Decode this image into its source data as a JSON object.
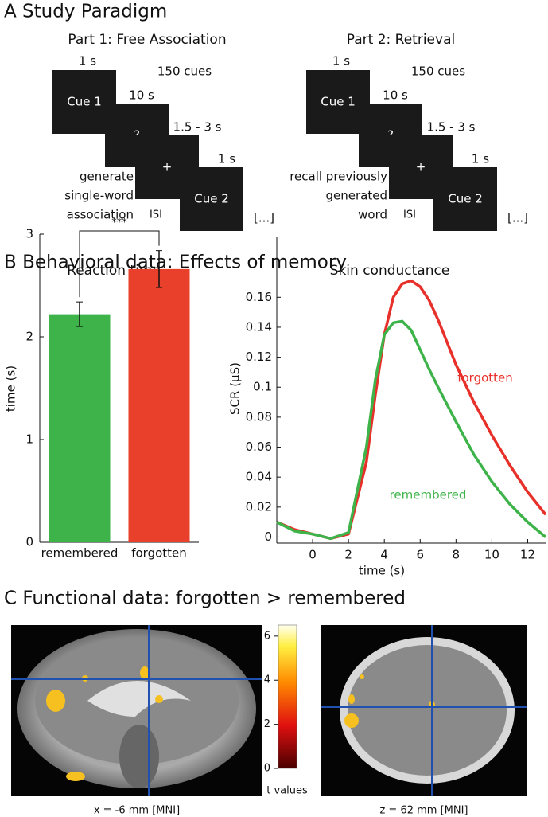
{
  "study_paradigm": {
    "title": "A Study Paradigm",
    "parts": [
      {
        "title": "Part 1: Free Association",
        "cue_count": "150 cues",
        "screens": [
          "Cue 1",
          "?",
          "+",
          "Cue 2"
        ],
        "durations": [
          "1 s",
          "10 s",
          "1.5 - 3 s",
          "1 s"
        ],
        "instruction": [
          "generate",
          "single-word",
          "association"
        ],
        "isi": "ISI",
        "continuation": "[...]"
      },
      {
        "title": "Part 2: Retrieval",
        "cue_count": "150 cues",
        "screens": [
          "Cue 1",
          "?",
          "+",
          "Cue 2"
        ],
        "durations": [
          "1 s",
          "10 s",
          "1.5 - 3 s",
          "1 s"
        ],
        "instruction": [
          "recall previously",
          "generated",
          "word"
        ],
        "isi": "ISI",
        "continuation": "[...]"
      }
    ]
  },
  "behavioral": {
    "title": "B Behavioral data: Effects of memory"
  },
  "chart_data": [
    {
      "type": "bar",
      "title": "Reaction time",
      "ylabel": "time (s)",
      "categories": [
        "remembered",
        "forgotten"
      ],
      "values": [
        2.22,
        2.66
      ],
      "errors": [
        0.12,
        0.18
      ],
      "colors": [
        "#3db34a",
        "#e8402a"
      ],
      "ylim": [
        0,
        3
      ],
      "yticks": [
        0,
        1,
        2,
        3
      ],
      "significance": "***"
    },
    {
      "type": "line",
      "title": "Skin conductance",
      "xlabel": "time (s)",
      "ylabel": "SCR (μS)",
      "x": [
        -2,
        -1,
        0,
        1,
        2,
        3,
        3.5,
        4,
        4.5,
        5,
        5.5,
        6,
        6.5,
        7,
        8,
        9,
        10,
        11,
        12,
        13
      ],
      "series": [
        {
          "name": "forgotten",
          "color": "#e8302a",
          "values": [
            0.01,
            0.005,
            0.002,
            -0.001,
            0.002,
            0.05,
            0.095,
            0.135,
            0.16,
            0.169,
            0.171,
            0.167,
            0.158,
            0.145,
            0.115,
            0.09,
            0.068,
            0.048,
            0.03,
            0.015
          ]
        },
        {
          "name": "remembered",
          "color": "#3db34a",
          "values": [
            0.01,
            0.004,
            0.002,
            -0.001,
            0.003,
            0.06,
            0.105,
            0.135,
            0.143,
            0.144,
            0.138,
            0.125,
            0.112,
            0.1,
            0.077,
            0.055,
            0.037,
            0.022,
            0.01,
            0.0
          ]
        }
      ],
      "xlim": [
        -2,
        13
      ],
      "xticks": [
        0,
        2,
        4,
        6,
        8,
        10,
        12
      ],
      "ylim": [
        -0.004,
        0.2
      ],
      "yticks": [
        0,
        0.02,
        0.04,
        0.06,
        0.08,
        0.1,
        0.12,
        0.14,
        0.16
      ]
    }
  ],
  "functional": {
    "title": "C Functional data: forgotten > remembered",
    "colorbar": {
      "ylim": [
        0,
        6.5
      ],
      "ticks": [
        0,
        2,
        4,
        6
      ],
      "label": "t values"
    },
    "captions": [
      "x = -6 mm [MNI]",
      "z = 62 mm [MNI]"
    ]
  }
}
